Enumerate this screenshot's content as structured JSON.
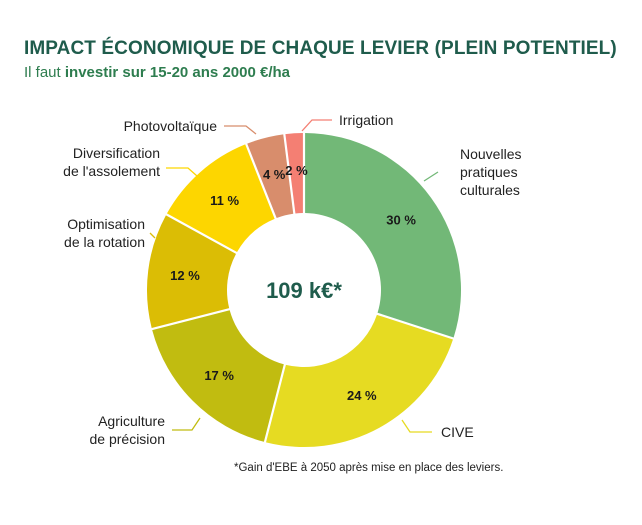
{
  "header": {
    "title": "IMPACT ÉCONOMIQUE DE CHAQUE LEVIER (PLEIN POTENTIEL)",
    "subtitle_prefix": "Il faut",
    "subtitle_bold": "investir sur 15-20 ans 2000 €/ha"
  },
  "footnote": "*Gain d'EBE à 2050 après mise en place des leviers.",
  "colors": {
    "title": "#1f5c4c",
    "subtitle": "#2e7d4f",
    "center_text": "#1f5c4c"
  },
  "chart_data": {
    "type": "pie",
    "title": "IMPACT ÉCONOMIQUE DE CHAQUE LEVIER (PLEIN POTENTIEL)",
    "center_label": "109 k€*",
    "unit": "%",
    "slices": [
      {
        "key": "nouvelles",
        "label": "Nouvelles\npratiques\nculturales",
        "value": 30,
        "display": "30 %",
        "color": "#72b877"
      },
      {
        "key": "cive",
        "label": "CIVE",
        "value": 24,
        "display": "24 %",
        "color": "#e6db22"
      },
      {
        "key": "agriculture",
        "label": "Agriculture\nde précision",
        "value": 17,
        "display": "17 %",
        "color": "#c1bc10"
      },
      {
        "key": "optimisation",
        "label": "Optimisation\nde la rotation",
        "value": 12,
        "display": "12 %",
        "color": "#dbbd05"
      },
      {
        "key": "diversification",
        "label": "Diversification\nde l'assolement",
        "value": 11,
        "display": "11 %",
        "color": "#fdd600"
      },
      {
        "key": "photovoltaique",
        "label": "Photovoltaïque",
        "value": 4,
        "display": "4 %",
        "color": "#d88d6c"
      },
      {
        "key": "irrigation",
        "label": "Irrigation",
        "value": 2,
        "display": "2 %",
        "color": "#f47f73"
      }
    ]
  }
}
